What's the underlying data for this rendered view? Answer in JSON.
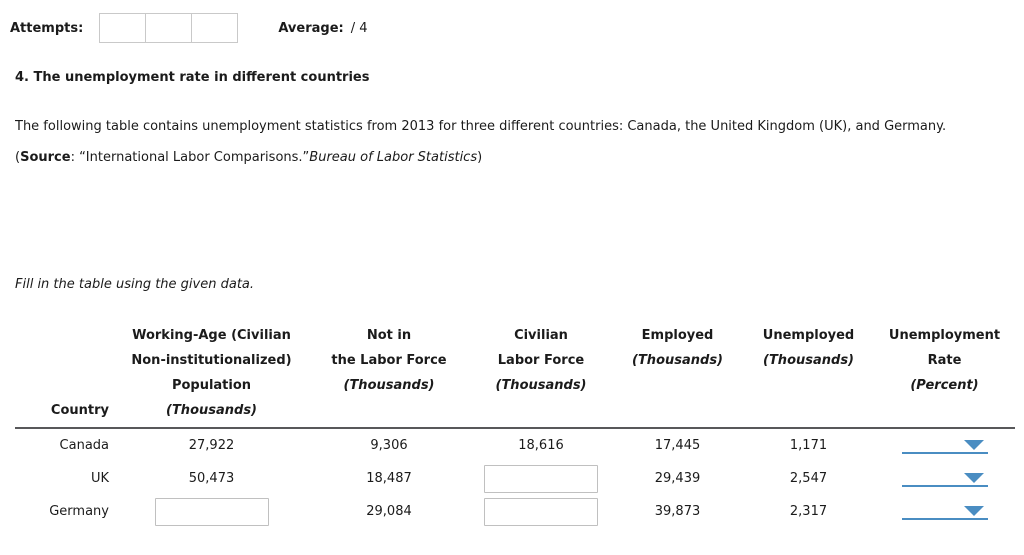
{
  "topbar": {
    "attempts_label": "Attempts:",
    "average_label": "Average:",
    "average_value": "/ 4"
  },
  "question": {
    "title": "4. The unemployment rate in different countries",
    "intro": "The following table contains unemployment statistics from 2013 for three different countries: Canada, the United Kingdom (UK), and Germany.",
    "source_open": "(",
    "source_label": "Source",
    "source_quote": ": “International Labor Comparisons.”",
    "source_italic": "Bureau of Labor Statistics",
    "source_close": ")",
    "instruction": "Fill in the table using the given data."
  },
  "table": {
    "header": {
      "country": "Country",
      "working_age": {
        "l1": "Working-Age (Civilian",
        "l2": "Non-institutionalized)",
        "l3": "Population",
        "unit": "(Thousands)"
      },
      "not_in_lf": {
        "l1": "Not in",
        "l2": "the Labor Force",
        "unit": "(Thousands)"
      },
      "civilian_lf": {
        "l1": "Civilian",
        "l2": "Labor Force",
        "unit": "(Thousands)"
      },
      "employed": {
        "l1": "Employed",
        "unit": "(Thousands)"
      },
      "unemployed": {
        "l1": "Unemployed",
        "unit": "(Thousands)"
      },
      "rate": {
        "l1": "Unemployment",
        "l2": "Rate",
        "unit": "(Percent)"
      }
    },
    "rows": [
      {
        "country": "Canada",
        "working_age": "27,922",
        "not_in_lf": "9,306",
        "civilian_lf": "18,616",
        "employed": "17,445",
        "unemployed": "1,171"
      },
      {
        "country": "UK",
        "working_age": "50,473",
        "not_in_lf": "18,487",
        "civilian_lf": "",
        "employed": "29,439",
        "unemployed": "2,547"
      },
      {
        "country": "Germany",
        "working_age": "",
        "not_in_lf": "29,084",
        "civilian_lf": "",
        "employed": "39,873",
        "unemployed": "2,317"
      }
    ]
  },
  "colors": {
    "accent_blue": "#4a8dc2",
    "header_rule": "#58585a"
  }
}
